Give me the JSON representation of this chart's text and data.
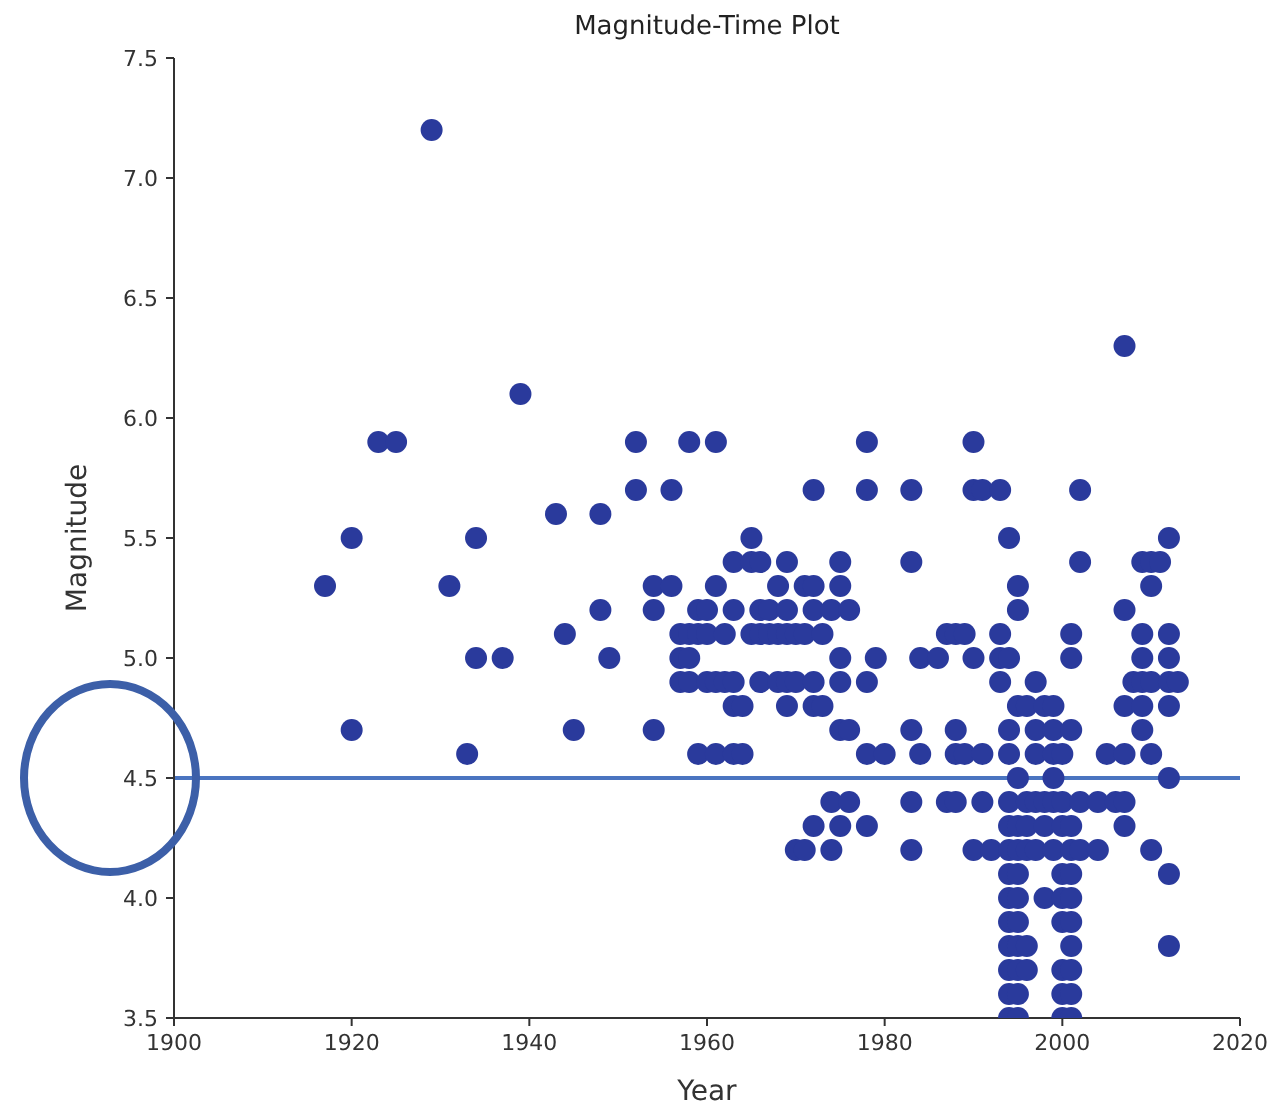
{
  "chart_data": {
    "type": "scatter",
    "title": "Magnitude-Time Plot",
    "xlabel": "Year",
    "ylabel": "Magnitude",
    "xlim": [
      1900,
      2020
    ],
    "xticks": [
      1900,
      1920,
      1940,
      1960,
      1980,
      2000,
      2020
    ],
    "ylim": [
      3.5,
      7.5
    ],
    "yticks": [
      {
        "value": 3.5,
        "label": "3.5"
      },
      {
        "value": 4,
        "label": "4.0"
      },
      {
        "value": 4.5,
        "label": "4.5"
      },
      {
        "value": 5,
        "label": "5.0"
      },
      {
        "value": 5.5,
        "label": "5.5"
      },
      {
        "value": 6,
        "label": "6.0"
      },
      {
        "value": 6.5,
        "label": "6.5"
      },
      {
        "value": 7,
        "label": "7.0"
      },
      {
        "value": 7.5,
        "label": "7.5"
      }
    ],
    "grid": false,
    "marker": "circle",
    "ref_lines": [
      {
        "axis": "y",
        "value": 4.5,
        "color": "#4a74c0"
      }
    ],
    "series": [
      {
        "color": "#2a3a9c",
        "x": [
          1929,
          2007,
          1939,
          1923,
          1925,
          1952,
          1958,
          1961,
          1978,
          1990,
          1952,
          1956,
          1972,
          1978,
          1983,
          1990,
          1991,
          1993,
          2002,
          1943,
          1948,
          1920,
          1934,
          1965,
          1994,
          2012,
          1963,
          1965,
          1966,
          1969,
          1975,
          1983,
          2002,
          2009,
          2010,
          2011,
          1917,
          1931,
          1954,
          1956,
          1961,
          1968,
          1971,
          1972,
          1975,
          1995,
          2010,
          1948,
          1954,
          1959,
          1960,
          1963,
          1966,
          1967,
          1969,
          1972,
          1974,
          1976,
          1995,
          2007,
          1944,
          1957,
          1958,
          1959,
          1960,
          1962,
          1965,
          1966,
          1967,
          1968,
          1969,
          1970,
          1971,
          1973,
          1987,
          1988,
          1989,
          1993,
          2001,
          2009,
          2012,
          1934,
          1937,
          1949,
          1957,
          1958,
          1975,
          1979,
          1984,
          1986,
          1990,
          1993,
          1994,
          2001,
          2009,
          2012,
          1957,
          1958,
          1960,
          1961,
          1962,
          1963,
          1966,
          1968,
          1969,
          1970,
          1972,
          1975,
          1978,
          1993,
          1997,
          2008,
          2009,
          2010,
          2012,
          2013,
          1963,
          1964,
          1969,
          1972,
          1973,
          1995,
          1996,
          1998,
          1999,
          2007,
          2009,
          2012,
          1920,
          1945,
          1954,
          1975,
          1976,
          1983,
          1988,
          1994,
          1997,
          1999,
          2001,
          2009,
          1933,
          1959,
          1961,
          1963,
          1964,
          1978,
          1980,
          1984,
          1988,
          1989,
          1991,
          1994,
          1997,
          1999,
          2000,
          2005,
          2007,
          2010,
          1995,
          1999,
          2012,
          1974,
          1976,
          1983,
          1987,
          1988,
          1991,
          1994,
          1996,
          1997,
          1998,
          1999,
          2000,
          2002,
          2004,
          2006,
          2007,
          1972,
          1975,
          1978,
          1994,
          1995,
          1996,
          1998,
          2000,
          2001,
          2007,
          1970,
          1971,
          1974,
          1983,
          1990,
          1992,
          1994,
          1995,
          1996,
          1997,
          1999,
          2001,
          2002,
          2004,
          2010,
          1994,
          1995,
          2000,
          2001,
          2012,
          1994,
          1995,
          1998,
          2000,
          2001,
          1994,
          1995,
          2000,
          2001,
          1994,
          1995,
          1996,
          2001,
          2012,
          1994,
          1995,
          1996,
          2000,
          2001,
          1994,
          1995,
          2000,
          2001,
          1994,
          1995,
          2000,
          2001
        ],
        "values": [
          7.2,
          6.3,
          6.1,
          5.9,
          5.9,
          5.9,
          5.9,
          5.9,
          5.9,
          5.9,
          5.7,
          5.7,
          5.7,
          5.7,
          5.7,
          5.7,
          5.7,
          5.7,
          5.7,
          5.6,
          5.6,
          5.5,
          5.5,
          5.5,
          5.5,
          5.5,
          5.4,
          5.4,
          5.4,
          5.4,
          5.4,
          5.4,
          5.4,
          5.4,
          5.4,
          5.4,
          5.3,
          5.3,
          5.3,
          5.3,
          5.3,
          5.3,
          5.3,
          5.3,
          5.3,
          5.3,
          5.3,
          5.2,
          5.2,
          5.2,
          5.2,
          5.2,
          5.2,
          5.2,
          5.2,
          5.2,
          5.2,
          5.2,
          5.2,
          5.2,
          5.1,
          5.1,
          5.1,
          5.1,
          5.1,
          5.1,
          5.1,
          5.1,
          5.1,
          5.1,
          5.1,
          5.1,
          5.1,
          5.1,
          5.1,
          5.1,
          5.1,
          5.1,
          5.1,
          5.1,
          5.1,
          5.0,
          5.0,
          5.0,
          5.0,
          5.0,
          5.0,
          5.0,
          5.0,
          5.0,
          5.0,
          5.0,
          5.0,
          5.0,
          5.0,
          5.0,
          4.9,
          4.9,
          4.9,
          4.9,
          4.9,
          4.9,
          4.9,
          4.9,
          4.9,
          4.9,
          4.9,
          4.9,
          4.9,
          4.9,
          4.9,
          4.9,
          4.9,
          4.9,
          4.9,
          4.9,
          4.8,
          4.8,
          4.8,
          4.8,
          4.8,
          4.8,
          4.8,
          4.8,
          4.8,
          4.8,
          4.8,
          4.8,
          4.7,
          4.7,
          4.7,
          4.7,
          4.7,
          4.7,
          4.7,
          4.7,
          4.7,
          4.7,
          4.7,
          4.7,
          4.6,
          4.6,
          4.6,
          4.6,
          4.6,
          4.6,
          4.6,
          4.6,
          4.6,
          4.6,
          4.6,
          4.6,
          4.6,
          4.6,
          4.6,
          4.6,
          4.6,
          4.6,
          4.5,
          4.5,
          4.5,
          4.4,
          4.4,
          4.4,
          4.4,
          4.4,
          4.4,
          4.4,
          4.4,
          4.4,
          4.4,
          4.4,
          4.4,
          4.4,
          4.4,
          4.4,
          4.4,
          4.3,
          4.3,
          4.3,
          4.3,
          4.3,
          4.3,
          4.3,
          4.3,
          4.3,
          4.3,
          4.2,
          4.2,
          4.2,
          4.2,
          4.2,
          4.2,
          4.2,
          4.2,
          4.2,
          4.2,
          4.2,
          4.2,
          4.2,
          4.2,
          4.2,
          4.1,
          4.1,
          4.1,
          4.1,
          4.1,
          4.0,
          4.0,
          4.0,
          4.0,
          4.0,
          3.9,
          3.9,
          3.9,
          3.9,
          3.8,
          3.8,
          3.8,
          3.8,
          3.8,
          3.7,
          3.7,
          3.7,
          3.7,
          3.7,
          3.6,
          3.6,
          3.6,
          3.6,
          3.5,
          3.5,
          3.5,
          3.5
        ]
      }
    ]
  }
}
